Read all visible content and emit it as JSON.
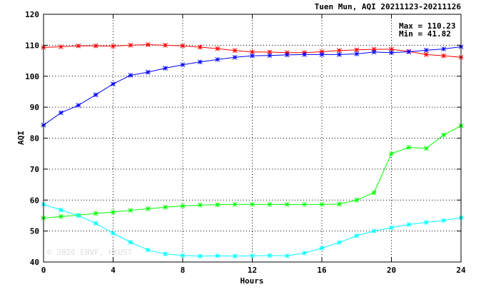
{
  "chart_data": {
    "type": "line",
    "title": "Tuen Mun, AQI 20211123-20211126",
    "xlabel": "Hours",
    "ylabel": "AQI",
    "xlim": [
      0,
      24
    ],
    "ylim": [
      40,
      120
    ],
    "x_ticks": [
      0,
      4,
      8,
      12,
      16,
      20,
      24
    ],
    "y_ticks": [
      40,
      50,
      60,
      70,
      80,
      90,
      100,
      110,
      120
    ],
    "grid": true,
    "stats": {
      "max_label": "Max = 110.23",
      "min_label": "Min =  41.82"
    },
    "watermark": "© 2026 ENVF, HKUST",
    "x": [
      0,
      1,
      2,
      3,
      4,
      5,
      6,
      7,
      8,
      9,
      10,
      11,
      12,
      13,
      14,
      15,
      16,
      17,
      18,
      19,
      20,
      21,
      22,
      23,
      24
    ],
    "series": [
      {
        "color": "#ff0000",
        "values": [
          109.3,
          109.5,
          109.8,
          109.8,
          109.7,
          110.0,
          110.2,
          110.0,
          109.8,
          109.4,
          108.9,
          108.3,
          107.8,
          107.8,
          107.6,
          107.6,
          107.9,
          108.3,
          108.5,
          108.7,
          108.7,
          108.0,
          107.0,
          106.6,
          106.1
        ]
      },
      {
        "color": "#0000ff",
        "values": [
          84.2,
          88.2,
          90.6,
          94.0,
          97.5,
          100.3,
          101.3,
          102.6,
          103.7,
          104.6,
          105.4,
          106.1,
          106.6,
          106.7,
          106.9,
          107.0,
          107.0,
          107.0,
          107.2,
          107.8,
          107.6,
          107.9,
          108.4,
          108.8,
          109.5
        ]
      },
      {
        "color": "#00ff00",
        "values": [
          54.2,
          54.7,
          55.1,
          55.7,
          56.1,
          56.7,
          57.2,
          57.7,
          58.1,
          58.4,
          58.5,
          58.6,
          58.6,
          58.6,
          58.6,
          58.6,
          58.6,
          58.7,
          60.0,
          62.4,
          75.0,
          77.0,
          76.7,
          81.0,
          84.0
        ]
      },
      {
        "color": "#00ffff",
        "values": [
          58.6,
          56.8,
          55.0,
          52.5,
          49.3,
          46.4,
          43.9,
          42.6,
          42.1,
          41.9,
          42.0,
          41.9,
          42.0,
          42.1,
          42.0,
          42.9,
          44.5,
          46.3,
          48.5,
          50.0,
          51.1,
          52.1,
          52.8,
          53.4,
          54.3
        ]
      }
    ]
  }
}
